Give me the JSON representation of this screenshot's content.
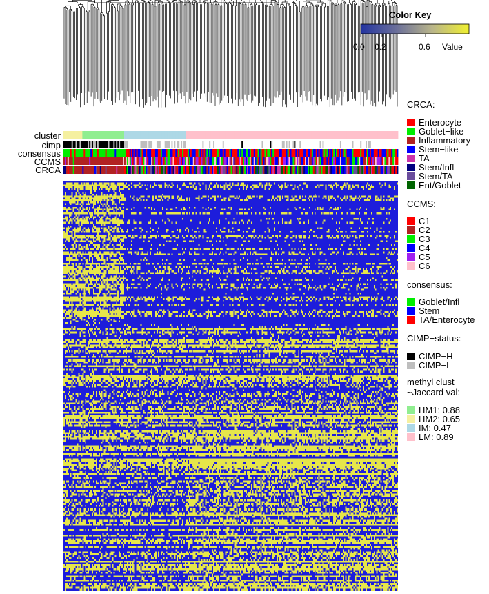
{
  "chart_data": {
    "type": "heatmap",
    "color_key": {
      "title": "Color Key",
      "xlabel": "Value",
      "ticks": [
        "0.0",
        "0.2",
        "0.6"
      ],
      "tick_values": [
        0.0,
        0.2,
        0.6
      ],
      "range": [
        0,
        1
      ],
      "colors": [
        "#2233a0",
        "#6b6f9a",
        "#b9b58a",
        "#f0f030"
      ]
    },
    "heatmap_colors": {
      "low": "#1d1ddb",
      "high": "#e6e64a"
    },
    "annotation_tracks": [
      "cluster",
      "cimp",
      "consensus",
      "CCMS",
      "CRCA"
    ],
    "cluster_column_counts": {
      "HM2": 14,
      "HM1": 31,
      "IM": 46,
      "LM": 157
    }
  },
  "legend": {
    "crca": {
      "title": "CRCA:",
      "items": [
        {
          "label": "Enterocyte",
          "color": "#ff0000"
        },
        {
          "label": "Goblet−like",
          "color": "#00ee00"
        },
        {
          "label": "Inflammatory",
          "color": "#b22222"
        },
        {
          "label": "Stem−like",
          "color": "#0000ff"
        },
        {
          "label": "TA",
          "color": "#cc33aa"
        },
        {
          "label": "Stem/Infl",
          "color": "#000080"
        },
        {
          "label": "Stem/TA",
          "color": "#6a4c9c"
        },
        {
          "label": "Ent/Goblet",
          "color": "#006400"
        }
      ]
    },
    "ccms": {
      "title": "CCMS:",
      "items": [
        {
          "label": "C1",
          "color": "#ff0000"
        },
        {
          "label": "C2",
          "color": "#b22222"
        },
        {
          "label": "C3",
          "color": "#00ee00"
        },
        {
          "label": "C4",
          "color": "#0000ff"
        },
        {
          "label": "C5",
          "color": "#a020f0"
        },
        {
          "label": "C6",
          "color": "#ffc0cb"
        }
      ]
    },
    "consensus": {
      "title": "consensus:",
      "items": [
        {
          "label": "Goblet/Infl",
          "color": "#00ee00"
        },
        {
          "label": "Stem",
          "color": "#0000ff"
        },
        {
          "label": "TA/Enterocyte",
          "color": "#ff0000"
        }
      ]
    },
    "cimp": {
      "title": "CIMP−status:",
      "items": [
        {
          "label": "CIMP−H",
          "color": "#000000"
        },
        {
          "label": "CIMP−L",
          "color": "#bebebe"
        }
      ]
    },
    "methyl": {
      "title": "methyl clust\n~Jaccard val:",
      "items": [
        {
          "label": "HM1:  0.88",
          "color": "#90ee90"
        },
        {
          "label": "HM2:  0.65",
          "color": "#f5f0a0"
        },
        {
          "label": "IM:  0.47",
          "color": "#add8e6"
        },
        {
          "label": "LM:  0.89",
          "color": "#ffc0cb"
        }
      ]
    }
  }
}
